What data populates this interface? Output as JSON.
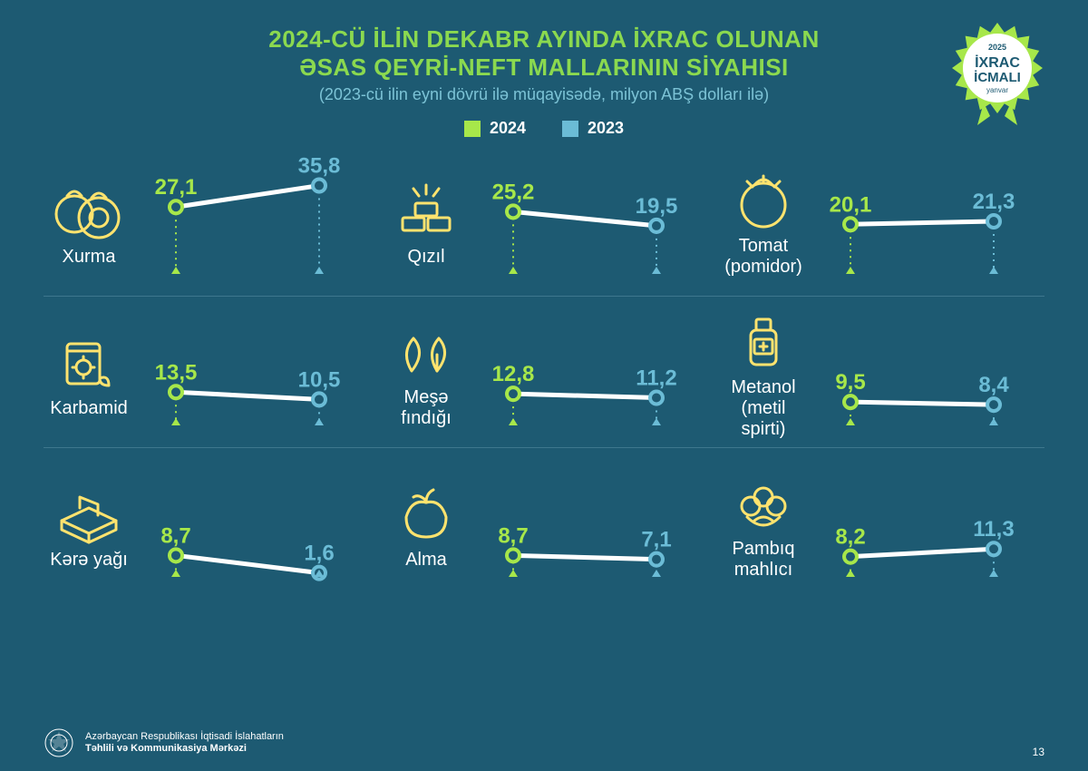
{
  "colors": {
    "bg": "#1d5a72",
    "title": "#8bd94f",
    "subtitle": "#7cc3d6",
    "y2024": "#a7e74a",
    "y2023": "#6bbcd6",
    "line": "#ffffff",
    "icon": "#ffe36e",
    "divider": "#4d8398"
  },
  "header": {
    "line1": "2024-CÜ İLİN DEKABR AYINDA İXRAC OLUNAN",
    "line2": "ƏSAS QEYRİ-NEFT MALLARININ SİYAHISI",
    "subtitle": "(2023-cü ilin eyni dövrü ilə müqayisədə, milyon ABŞ dolları ilə)"
  },
  "badge": {
    "year": "2025",
    "line1": "İXRAC",
    "line2": "İCMALI",
    "month": "yanvar"
  },
  "legend": {
    "y2024": "2024",
    "y2023": "2023"
  },
  "items": [
    {
      "name": "Xurma",
      "v2024": "27,1",
      "v2023": "35,8",
      "n2024": 27.1,
      "n2023": 35.8,
      "icon": "persimmon"
    },
    {
      "name": "Qızıl",
      "v2024": "25,2",
      "v2023": "19,5",
      "n2024": 25.2,
      "n2023": 19.5,
      "icon": "gold"
    },
    {
      "name": "Tomat\n(pomidor)",
      "v2024": "20,1",
      "v2023": "21,3",
      "n2024": 20.1,
      "n2023": 21.3,
      "icon": "tomato"
    },
    {
      "name": "Karbamid",
      "v2024": "13,5",
      "v2023": "10,5",
      "n2024": 13.5,
      "n2023": 10.5,
      "icon": "fertilizer"
    },
    {
      "name": "Meşə\nfındığı",
      "v2024": "12,8",
      "v2023": "11,2",
      "n2024": 12.8,
      "n2023": 11.2,
      "icon": "hazelnut"
    },
    {
      "name": "Metanol\n(metil spirti)",
      "v2024": "9,5",
      "v2023": "8,4",
      "n2024": 9.5,
      "n2023": 8.4,
      "icon": "bottle"
    },
    {
      "name": "Kərə yağı",
      "v2024": "8,7",
      "v2023": "1,6",
      "n2024": 8.7,
      "n2023": 1.6,
      "icon": "butter"
    },
    {
      "name": "Alma",
      "v2024": "8,7",
      "v2023": "7,1",
      "n2024": 8.7,
      "n2023": 7.1,
      "icon": "apple"
    },
    {
      "name": "Pambıq\nmahlıcı",
      "v2024": "8,2",
      "v2023": "11,3",
      "n2024": 8.2,
      "n2023": 11.3,
      "icon": "cotton"
    }
  ],
  "chart": {
    "maxValue": 36,
    "lineWidth": 5,
    "markerR": 7,
    "dashGap": 5
  },
  "footer": {
    "line1": "Azərbaycan Respublikası İqtisadi İslahatların",
    "line2": "Təhlili və Kommunikasiya Mərkəzi",
    "page": "13"
  }
}
